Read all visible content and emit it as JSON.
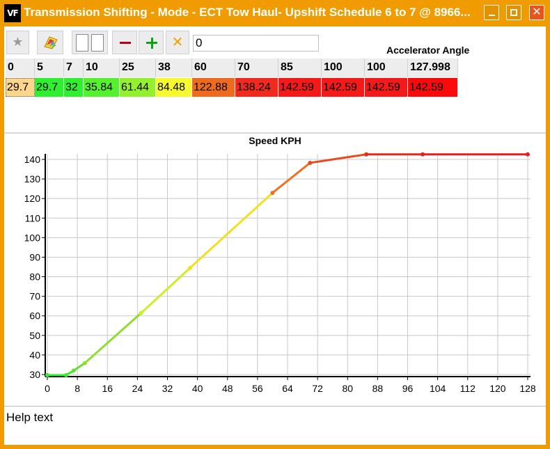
{
  "window": {
    "logo_text": "VF",
    "title": "Transmission Shifting - Mode - ECT Tow Haul- Upshift Schedule 6 to 7 @ 8966...",
    "minimize_icon": "minimize-icon",
    "maximize_icon": "maximize-icon",
    "close_icon": "close-icon",
    "close_glyph": "✕",
    "frame_color": "#f09c00"
  },
  "toolbar": {
    "favorite_icon": "star-icon",
    "favorite_glyph": "★",
    "palette_icon": "color-palette-icon",
    "copy_icon": "copy-pages-icon",
    "remove_icon": "minus-icon",
    "add_icon": "plus-icon",
    "clear_icon": "cross-icon",
    "clear_glyph": "✕",
    "value_input": "0",
    "column_axis_label": "Accelerator Angle"
  },
  "table": {
    "headers": [
      "0",
      "5",
      "7",
      "10",
      "25",
      "38",
      "60",
      "70",
      "85",
      "100",
      "100",
      "127.998"
    ],
    "values": [
      "29.7",
      "29.7",
      "32",
      "35.84",
      "61.44",
      "84.48",
      "122.88",
      "138.24",
      "142.59",
      "142.59",
      "142.59",
      "142.59"
    ],
    "cell_colors": [
      "#fdd58b",
      "#2ef02e",
      "#2ef02e",
      "#55f02e",
      "#93f02e",
      "#f8f82e",
      "#ee6a1f",
      "#f02a1f",
      "#f51a1a",
      "#f51a1a",
      "#f51a1a",
      "#fa0a0a"
    ]
  },
  "chart_data": {
    "type": "line",
    "title": "Speed KPH",
    "xlabel": "",
    "ylabel": "",
    "x": [
      0,
      5,
      7,
      10,
      25,
      38,
      60,
      70,
      85,
      100,
      127.998
    ],
    "values": [
      29.7,
      29.7,
      32,
      35.84,
      61.44,
      84.48,
      122.88,
      138.24,
      142.59,
      142.59,
      142.59
    ],
    "segment_colors": [
      "#33ee33",
      "#44e833",
      "#66dd33",
      "#8fdd2e",
      "#ccee22",
      "#f0e020",
      "#ee7020",
      "#e84a20",
      "#e42a20",
      "#e22020"
    ],
    "xlim": [
      0,
      128
    ],
    "ylim": [
      30,
      140
    ],
    "xticks": [
      0,
      8,
      16,
      24,
      32,
      40,
      48,
      56,
      64,
      72,
      80,
      88,
      96,
      104,
      112,
      120,
      128
    ],
    "yticks": [
      30,
      40,
      50,
      60,
      70,
      80,
      90,
      100,
      110,
      120,
      130,
      140
    ],
    "grid": true,
    "grid_color": "#c8c8c8"
  },
  "help": {
    "text": "Help text"
  }
}
